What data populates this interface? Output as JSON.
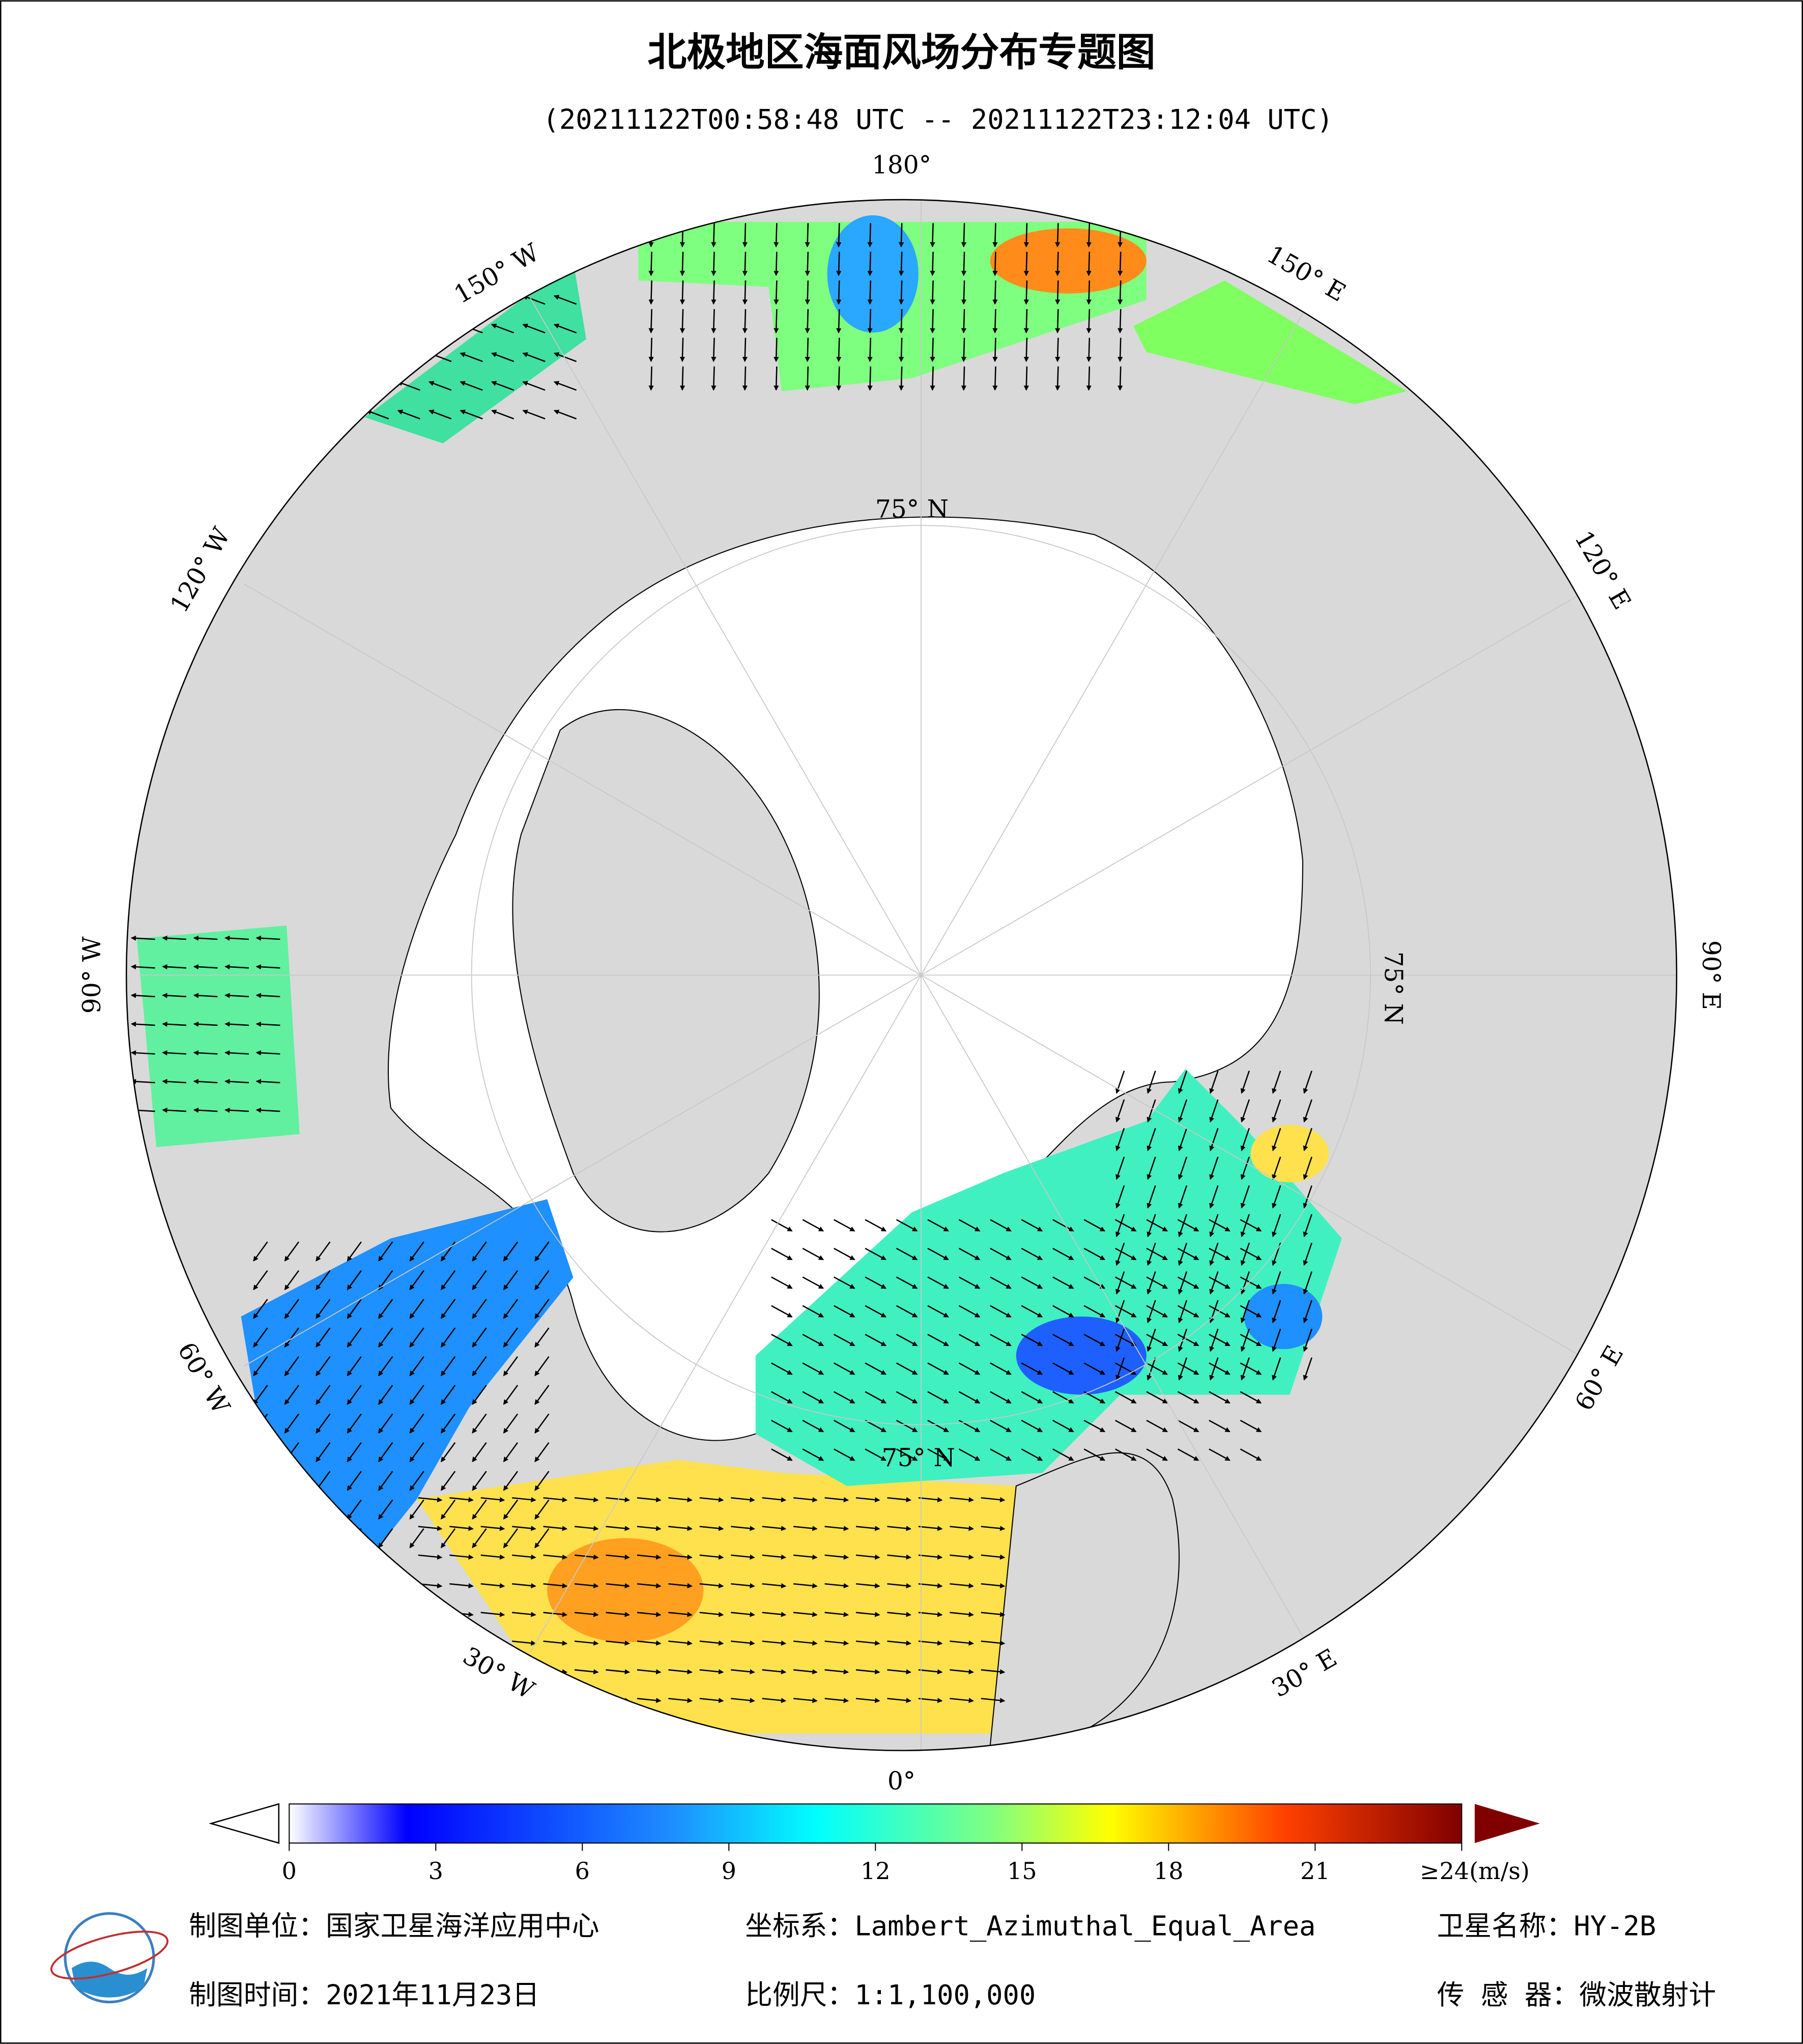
{
  "header": {
    "title": "北极地区海面风场分布专题图",
    "subtitle": "(20211122T00:58:48 UTC -- 20211122T23:12:04 UTC)"
  },
  "map": {
    "longitude_labels": [
      "180°",
      "150° E",
      "120° E",
      "90° E",
      "60° E",
      "30° E",
      "0°",
      "30° W",
      "60° W",
      "90° W",
      "120° W",
      "150° W"
    ],
    "latitude_labels": [
      "75° N",
      "75° N",
      "75° N"
    ]
  },
  "colorbar": {
    "ticks": [
      0,
      3,
      6,
      9,
      12,
      15,
      18,
      21,
      {
        "value": 24,
        "label": "≥24(m/s)"
      }
    ]
  },
  "footer": {
    "producer": "制图单位：国家卫星海洋应用中心",
    "projection": "坐标系：Lambert_Azimuthal_Equal_Area",
    "satellite": "卫星名称：HY-2B",
    "date": "制图时间：2021年11月23日",
    "scale": "比例尺：1:1,100,000",
    "sensor": "传 感 器：微波散射计"
  }
}
